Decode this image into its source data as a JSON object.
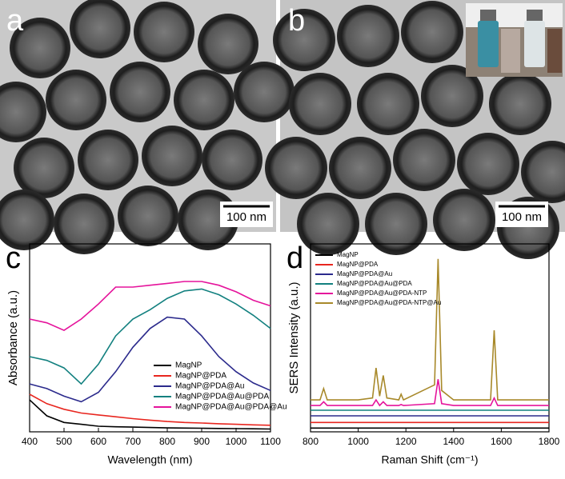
{
  "panels": [
    {
      "label": "a",
      "scale_bar": "100 nm"
    },
    {
      "label": "b",
      "scale_bar": "100 nm"
    }
  ],
  "chart_data": [
    {
      "type": "line",
      "label": "c",
      "x_label": "Wavelength (nm)",
      "y_label": "Absorbance (a.u.)",
      "xlim": [
        400,
        1100
      ],
      "xticks": [
        400,
        500,
        600,
        700,
        800,
        900,
        1000,
        1100
      ],
      "ylim": [
        0,
        1
      ],
      "legend": "lower-right",
      "x": [
        400,
        450,
        500,
        550,
        600,
        650,
        700,
        750,
        800,
        850,
        900,
        950,
        1000,
        1050,
        1100
      ],
      "series": [
        {
          "name": "MagNP",
          "color": "#000000",
          "values": [
            0.17,
            0.085,
            0.05,
            0.04,
            0.03,
            0.027,
            0.025,
            0.023,
            0.021,
            0.02,
            0.019,
            0.018,
            0.017,
            0.016,
            0.015
          ]
        },
        {
          "name": "MagNP@PDA",
          "color": "#e8261f",
          "values": [
            0.2,
            0.15,
            0.12,
            0.1,
            0.09,
            0.08,
            0.07,
            0.062,
            0.055,
            0.05,
            0.047,
            0.043,
            0.04,
            0.037,
            0.035
          ]
        },
        {
          "name": "MagNP@PDA@Au",
          "color": "#2b2a8c",
          "values": [
            0.255,
            0.23,
            0.19,
            0.16,
            0.21,
            0.32,
            0.45,
            0.55,
            0.61,
            0.6,
            0.51,
            0.4,
            0.32,
            0.26,
            0.22
          ]
        },
        {
          "name": "MagNP@PDA@Au@PDA",
          "color": "#12807f",
          "values": [
            0.4,
            0.38,
            0.34,
            0.255,
            0.36,
            0.51,
            0.6,
            0.65,
            0.71,
            0.75,
            0.76,
            0.73,
            0.68,
            0.62,
            0.55
          ]
        },
        {
          "name": "MagNP@PDA@Au@PDA@Au",
          "color": "#e5139b",
          "values": [
            0.6,
            0.58,
            0.54,
            0.6,
            0.68,
            0.77,
            0.77,
            0.78,
            0.79,
            0.8,
            0.8,
            0.78,
            0.745,
            0.7,
            0.67
          ]
        }
      ]
    },
    {
      "type": "line",
      "label": "d",
      "x_label": "Raman Shift (cm⁻¹)",
      "y_label": "SERS Intensity (a.u.)",
      "xlim": [
        800,
        1800
      ],
      "xticks": [
        800,
        1000,
        1200,
        1400,
        1600,
        1800
      ],
      "ylim": [
        0,
        1
      ],
      "legend": "upper-left",
      "x": [
        800,
        840,
        855,
        870,
        1000,
        1060,
        1075,
        1090,
        1105,
        1120,
        1170,
        1180,
        1190,
        1320,
        1335,
        1350,
        1400,
        1450,
        1555,
        1570,
        1585,
        1700,
        1800
      ],
      "series": [
        {
          "name": "MagNP",
          "color": "#000000",
          "values": [
            0.02,
            0.02,
            0.02,
            0.02,
            0.02,
            0.02,
            0.02,
            0.02,
            0.02,
            0.02,
            0.02,
            0.02,
            0.02,
            0.02,
            0.02,
            0.02,
            0.02,
            0.02,
            0.02,
            0.02,
            0.02,
            0.02,
            0.02
          ]
        },
        {
          "name": "MagNP@PDA",
          "color": "#e8261f",
          "values": [
            0.05,
            0.05,
            0.05,
            0.05,
            0.05,
            0.05,
            0.05,
            0.05,
            0.05,
            0.05,
            0.05,
            0.05,
            0.05,
            0.05,
            0.05,
            0.05,
            0.05,
            0.05,
            0.05,
            0.05,
            0.05,
            0.05,
            0.05
          ]
        },
        {
          "name": "MagNP@PDA@Au",
          "color": "#2b2a8c",
          "values": [
            0.085,
            0.085,
            0.085,
            0.085,
            0.085,
            0.085,
            0.085,
            0.085,
            0.085,
            0.085,
            0.085,
            0.085,
            0.085,
            0.085,
            0.085,
            0.085,
            0.085,
            0.085,
            0.085,
            0.085,
            0.085,
            0.085,
            0.085
          ]
        },
        {
          "name": "MagNP@PDA@Au@PDA",
          "color": "#12807f",
          "values": [
            0.115,
            0.115,
            0.115,
            0.115,
            0.115,
            0.115,
            0.115,
            0.115,
            0.115,
            0.115,
            0.115,
            0.115,
            0.115,
            0.115,
            0.115,
            0.115,
            0.115,
            0.115,
            0.115,
            0.115,
            0.115,
            0.115,
            0.115
          ]
        },
        {
          "name": "MagNP@PDA@Au@PDA-NTP",
          "color": "#e5139b",
          "values": [
            0.14,
            0.14,
            0.16,
            0.14,
            0.14,
            0.14,
            0.17,
            0.14,
            0.16,
            0.14,
            0.14,
            0.145,
            0.14,
            0.15,
            0.28,
            0.15,
            0.14,
            0.14,
            0.14,
            0.18,
            0.14,
            0.14,
            0.14
          ]
        },
        {
          "name": "MagNP@PDA@Au@PDA-NTP@Au",
          "color": "#a8892a",
          "values": [
            0.17,
            0.17,
            0.23,
            0.17,
            0.17,
            0.18,
            0.34,
            0.19,
            0.3,
            0.18,
            0.17,
            0.2,
            0.17,
            0.25,
            0.92,
            0.22,
            0.17,
            0.17,
            0.17,
            0.54,
            0.17,
            0.17,
            0.17
          ]
        }
      ]
    }
  ]
}
